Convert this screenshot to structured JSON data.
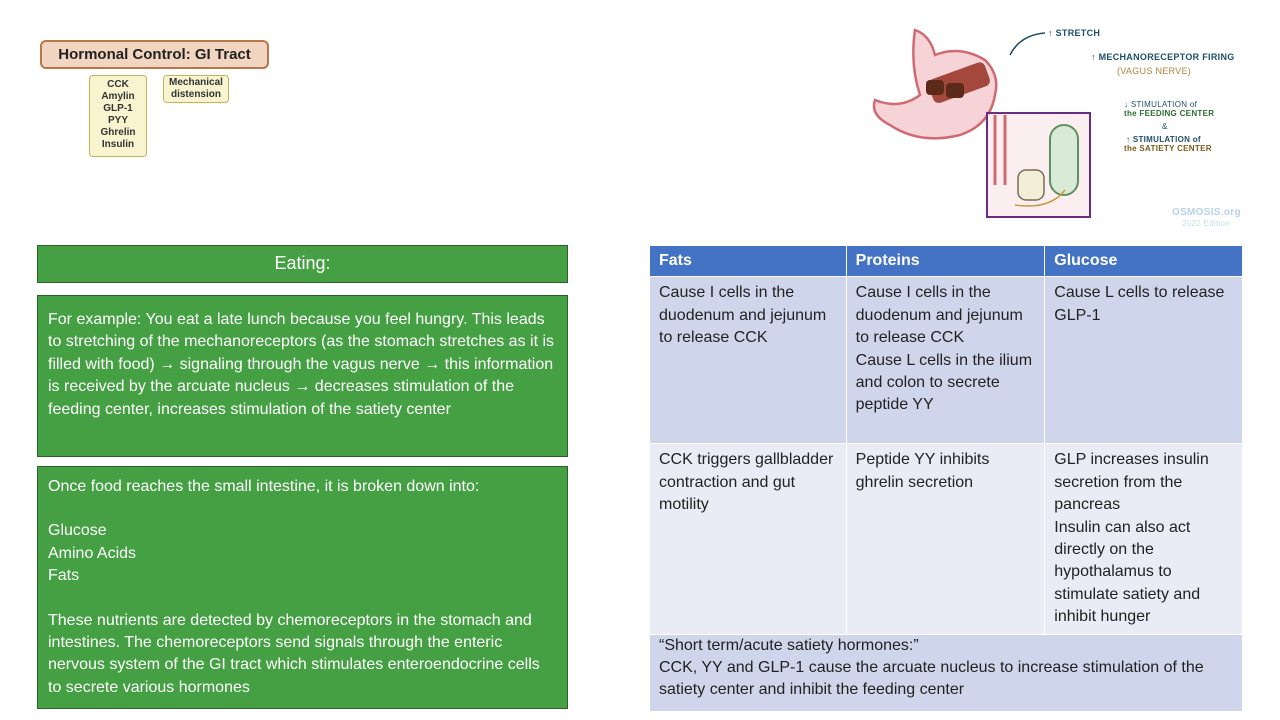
{
  "diagram": {
    "title": "Hormonal Control: GI Tract",
    "hormones": [
      "CCK",
      "Amylin",
      "GLP-1",
      "PYY",
      "Ghrelin",
      "Insulin"
    ],
    "mechanical": [
      "Mechanical",
      "distension"
    ]
  },
  "illustration": {
    "stretch": "↑ STRETCH",
    "mechano": "↑ MECHANORECEPTOR FIRING",
    "vagus": "(VAGUS NERVE)",
    "feed1": "↓ STIMULATION of",
    "feed2": "the FEEDING CENTER",
    "amp": "&",
    "sat1": "↑ STIMULATION of",
    "sat2": "the SATIETY CENTER",
    "logo": "OSMOSIS.org",
    "edition": "2022 Edition"
  },
  "eating": {
    "heading": "Eating:",
    "para1": "For example: You eat a late lunch because you feel hungry. This leads to stretching of the mechanoreceptors (as the stomach stretches as it is filled with food) → signaling through the vagus nerve → this information is received by the arcuate nucleus → decreases stimulation of the feeding center, increases stimulation of the satiety center",
    "para2_intro": "Once food reaches the small intestine, it is broken down into:",
    "nutrients": [
      "Glucose",
      "Amino Acids",
      "Fats"
    ],
    "para2_body": "These nutrients are detected by chemoreceptors in the stomach and intestines. The chemoreceptors send signals through the enteric nervous system of the GI tract which stimulates enteroendocrine cells to secrete various hormones"
  },
  "table": {
    "headers": [
      "Fats",
      "Proteins",
      "Glucose"
    ],
    "rows": [
      [
        [
          "Cause I cells in the duodenum and jejunum to release CCK"
        ],
        [
          "Cause I cells in the duodenum and jejunum to release CCK",
          "Cause L cells in the ilium and colon to secrete peptide YY"
        ],
        [
          "Cause L cells to release GLP-1"
        ]
      ],
      [
        [
          "CCK triggers gallbladder contraction and gut motility"
        ],
        [
          "Peptide YY inhibits ghrelin secretion"
        ],
        [
          "GLP increases insulin secretion from the pancreas",
          "Insulin can also act directly on the hypothalamus to stimulate satiety and inhibit hunger"
        ]
      ]
    ],
    "footer1": "“Short term/acute satiety hormones:”",
    "footer2": "CCK, YY and GLP-1 cause the arcuate nucleus to increase stimulation of the satiety center and inhibit the feeding center"
  },
  "colors": {
    "green": "#44a043",
    "header": "#4472c4",
    "row_dark": "#cfd5ea",
    "row_light": "#e9ebf5"
  }
}
